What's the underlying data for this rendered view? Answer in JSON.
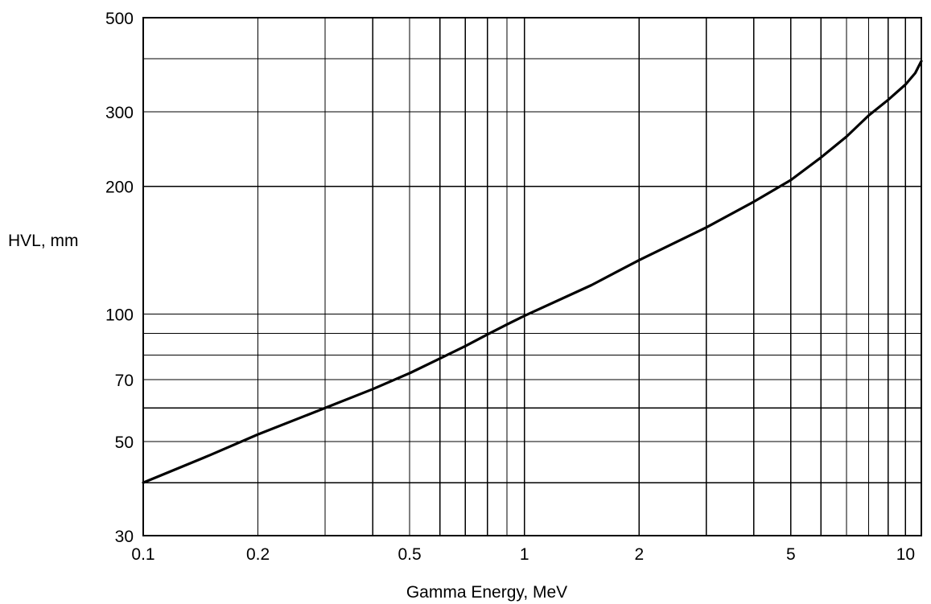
{
  "chart_data": {
    "type": "line",
    "title": "",
    "xlabel": "Gamma Energy, MeV",
    "ylabel": "HVL, mm",
    "x_scale": "log",
    "y_scale": "log",
    "xlim": [
      0.1,
      11
    ],
    "ylim": [
      30,
      500
    ],
    "grid": true,
    "x_gridlines": [
      0.1,
      0.2,
      0.3,
      0.4,
      0.5,
      0.6,
      0.7,
      0.8,
      0.9,
      1,
      2,
      3,
      4,
      5,
      6,
      7,
      8,
      9,
      10,
      11
    ],
    "y_gridlines": [
      30,
      40,
      50,
      60,
      70,
      80,
      90,
      100,
      200,
      300,
      400,
      500
    ],
    "x_ticks": [
      {
        "value": 0.1,
        "label": "0.1"
      },
      {
        "value": 0.2,
        "label": "0.2"
      },
      {
        "value": 0.5,
        "label": "0.5"
      },
      {
        "value": 1,
        "label": "1"
      },
      {
        "value": 2,
        "label": "2"
      },
      {
        "value": 5,
        "label": "5"
      },
      {
        "value": 10,
        "label": "10"
      }
    ],
    "y_ticks": [
      {
        "value": 30,
        "label": "30"
      },
      {
        "value": 50,
        "label": "50"
      },
      {
        "value": 70,
        "label": "70"
      },
      {
        "value": 100,
        "label": "100"
      },
      {
        "value": 200,
        "label": "200"
      },
      {
        "value": 300,
        "label": "300"
      },
      {
        "value": 500,
        "label": "500"
      }
    ],
    "series": [
      {
        "points": [
          [
            0.1,
            40
          ],
          [
            0.15,
            46.5
          ],
          [
            0.2,
            52
          ],
          [
            0.3,
            60
          ],
          [
            0.4,
            66.5
          ],
          [
            0.5,
            72.5
          ],
          [
            0.6,
            78.5
          ],
          [
            0.7,
            84
          ],
          [
            0.8,
            89.5
          ],
          [
            0.9,
            94.5
          ],
          [
            1,
            99
          ],
          [
            1.5,
            117
          ],
          [
            2,
            134
          ],
          [
            3,
            160
          ],
          [
            4,
            184
          ],
          [
            5,
            207
          ],
          [
            6,
            234
          ],
          [
            7,
            262
          ],
          [
            8,
            294
          ],
          [
            9,
            320
          ],
          [
            10,
            348
          ],
          [
            10.6,
            370
          ],
          [
            11,
            395
          ]
        ]
      }
    ]
  }
}
